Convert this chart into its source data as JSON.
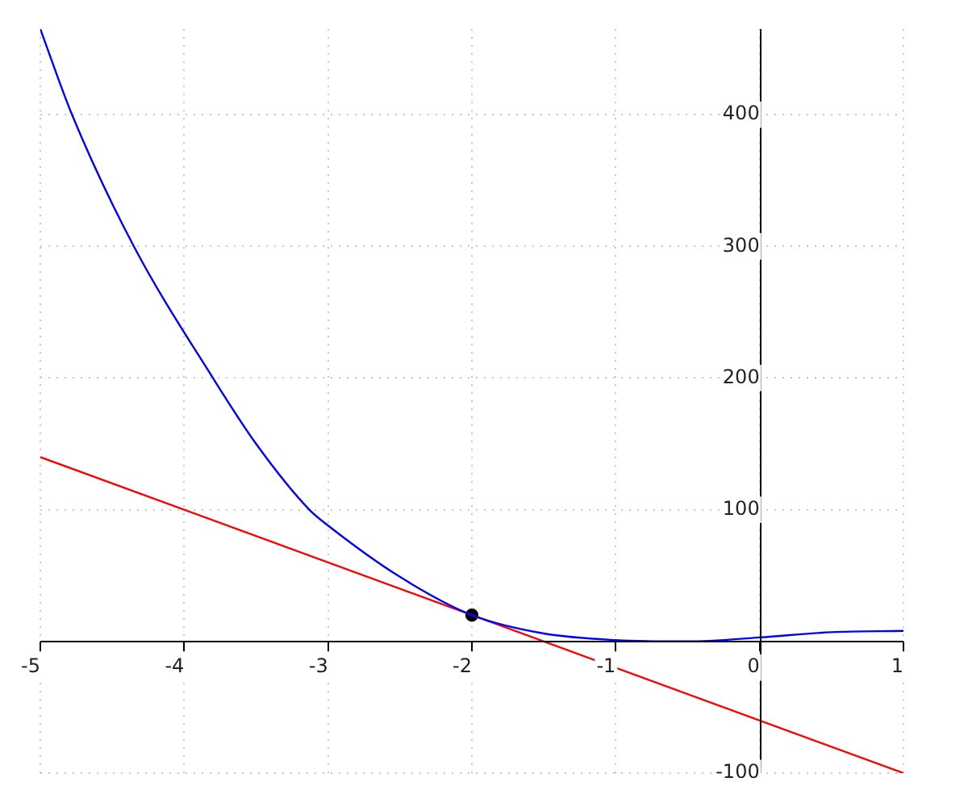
{
  "chart_data": {
    "type": "line",
    "xlim": [
      -5,
      1
    ],
    "xticks": [
      -5,
      -4,
      -3,
      -2,
      -1,
      0,
      1
    ],
    "ylim": [
      -100,
      465
    ],
    "yticks": [
      -100,
      100,
      200,
      300,
      400
    ],
    "grid": true,
    "legend": false,
    "marker": "none",
    "series": [
      {
        "color": "#0000ff",
        "x": [
          -5,
          -4.78,
          -4.35,
          -3.8,
          -3.5,
          -3.13,
          -3,
          -2.5,
          -2,
          -1.5,
          -1,
          -0.5,
          0,
          0.5,
          1
        ],
        "values": [
          465,
          400,
          300,
          200,
          150,
          100,
          88,
          49,
          20,
          6,
          1,
          0,
          3,
          7,
          8
        ]
      },
      {
        "color": "#ff0000",
        "x": [
          -5,
          1
        ],
        "values": [
          140,
          -100
        ]
      },
      {
        "type": "scatter",
        "marker": "circle",
        "color": "#000000",
        "x": [
          -2
        ],
        "values": [
          20
        ]
      }
    ]
  }
}
